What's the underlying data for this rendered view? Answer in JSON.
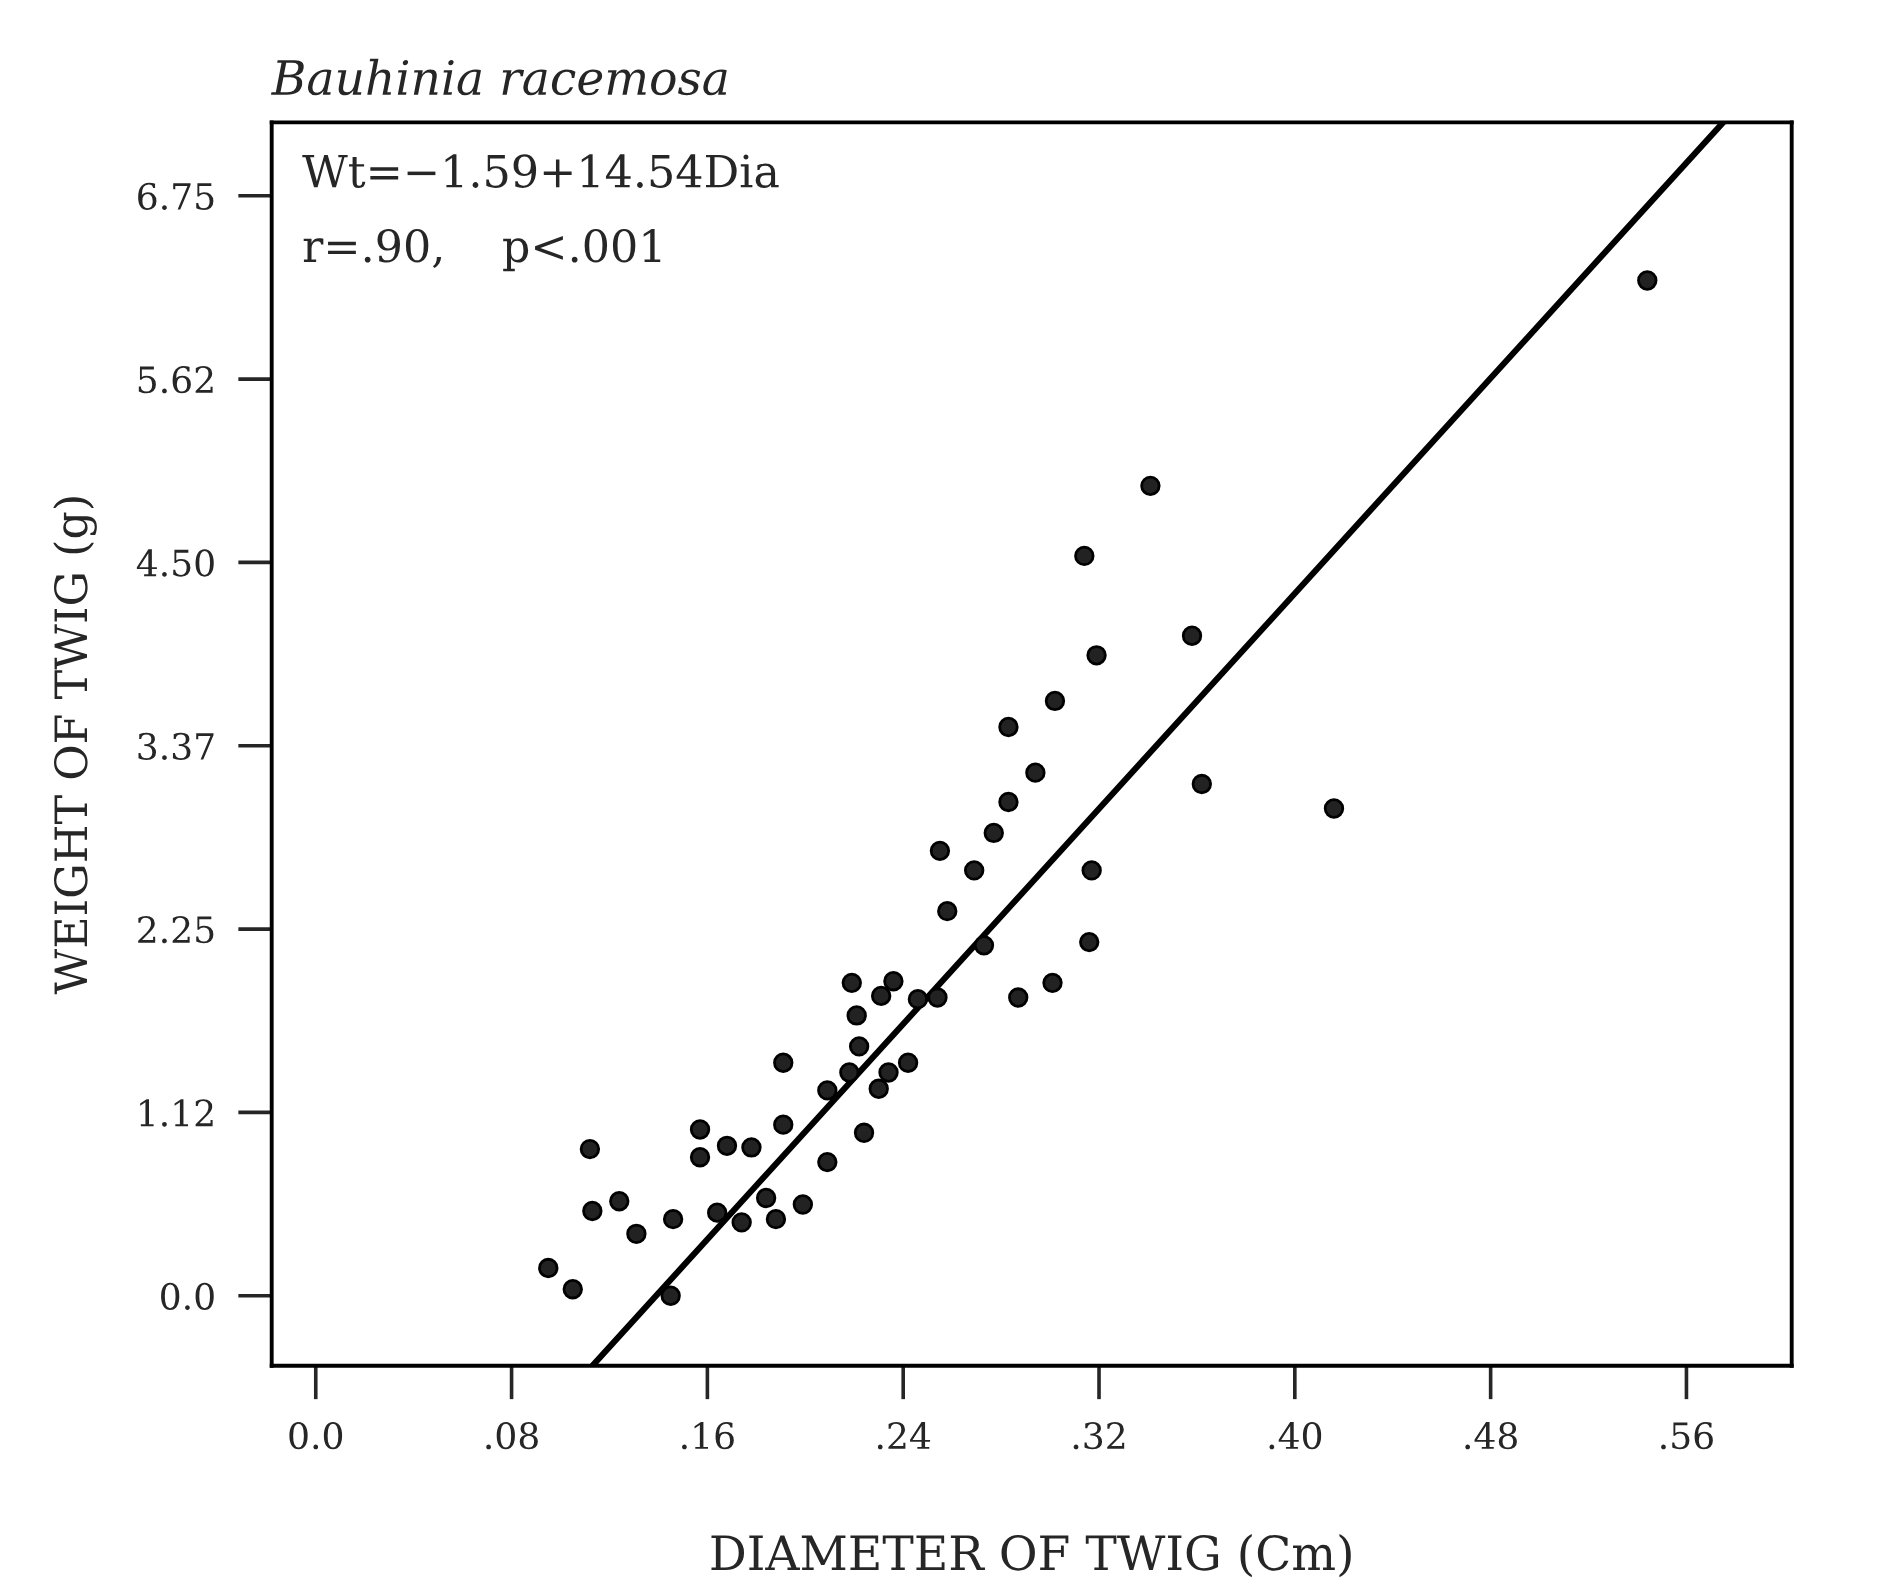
{
  "chart_data": {
    "type": "scatter",
    "title": "Bauhinia racemosa",
    "xlabel": "DIAMETER OF TWIG (Cm)",
    "ylabel": "WEIGHT OF TWIG (g)",
    "annotations": [
      "Wt=−1.59+14.54Dia",
      "r=.90,    p<.001"
    ],
    "xlim": [
      -0.018,
      0.603
    ],
    "ylim": [
      -0.43,
      7.2
    ],
    "xticks": [
      {
        "value": 0,
        "label": "0.0"
      },
      {
        "value": 0.08,
        "label": ".08"
      },
      {
        "value": 0.16,
        "label": ".16"
      },
      {
        "value": 0.24,
        "label": ".24"
      },
      {
        "value": 0.32,
        "label": ".32"
      },
      {
        "value": 0.4,
        "label": ".40"
      },
      {
        "value": 0.48,
        "label": ".48"
      },
      {
        "value": 0.56,
        "label": ".56"
      }
    ],
    "yticks": [
      {
        "value": 0,
        "label": "0.0"
      },
      {
        "value": 1.125,
        "label": "1.12"
      },
      {
        "value": 2.25,
        "label": "2.25"
      },
      {
        "value": 3.375,
        "label": "3.37"
      },
      {
        "value": 4.5,
        "label": "4.50"
      },
      {
        "value": 5.625,
        "label": "5.62"
      },
      {
        "value": 6.75,
        "label": "6.75"
      }
    ],
    "grid": false,
    "marker": "circle",
    "series": [
      {
        "color": "#222222",
        "x": [
          0.095,
          0.105,
          0.112,
          0.113,
          0.124,
          0.131,
          0.146,
          0.145,
          0.157,
          0.157,
          0.164,
          0.168,
          0.174,
          0.178,
          0.184,
          0.188,
          0.191,
          0.191,
          0.199,
          0.209,
          0.209,
          0.219,
          0.218,
          0.221,
          0.222,
          0.224,
          0.23,
          0.231,
          0.234,
          0.236,
          0.242,
          0.246,
          0.255,
          0.254,
          0.258,
          0.269,
          0.273,
          0.277,
          0.283,
          0.283,
          0.287,
          0.294,
          0.319,
          0.302,
          0.301,
          0.317,
          0.316,
          0.358,
          0.362,
          0.416,
          0.544,
          0.341,
          0.314
        ],
        "values": [
          0.17,
          0.04,
          0.9,
          0.52,
          0.58,
          0.38,
          0.47,
          0.0,
          1.02,
          0.85,
          0.51,
          0.92,
          0.45,
          0.91,
          0.6,
          0.47,
          1.43,
          1.05,
          0.56,
          1.26,
          0.82,
          1.92,
          1.37,
          1.72,
          1.53,
          1.0,
          1.27,
          1.84,
          1.37,
          1.93,
          1.43,
          1.82,
          2.73,
          1.83,
          2.36,
          2.61,
          2.15,
          2.84,
          3.49,
          3.03,
          1.83,
          3.21,
          3.93,
          3.65,
          1.92,
          2.61,
          2.17,
          4.05,
          3.14,
          2.99,
          6.23,
          4.97,
          4.54
        ]
      },
      {
        "type": "line",
        "color": "#000000",
        "line_style": "solid",
        "marker": "none",
        "x": [
          0.113,
          0.575
        ],
        "values": [
          -0.43,
          7.2
        ]
      }
    ]
  }
}
